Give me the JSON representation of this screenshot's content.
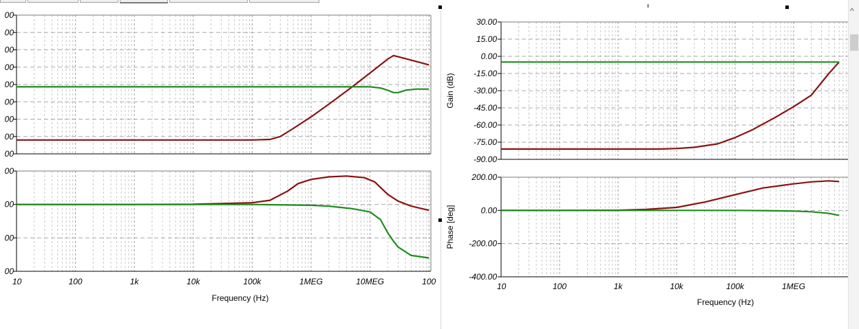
{
  "ui": {
    "tab_count": 5,
    "active_tab": 3
  },
  "chart_data": [
    {
      "id": "left-gain",
      "type": "line",
      "x_scale": "log",
      "xlim": [
        10,
        100000000
      ],
      "ylim": [
        -90,
        30
      ],
      "x_tick_labels": [],
      "y_tick_labels": [
        "00",
        "00",
        "00",
        "00",
        "00",
        "00",
        "00",
        "00",
        "00"
      ],
      "grid": true,
      "xlabel": "",
      "ylabel": "",
      "series": [
        {
          "color": "#8b1010",
          "x": [
            10,
            100,
            1000,
            10000,
            100000,
            200000,
            300000,
            500000,
            1000000,
            2000000,
            5000000,
            10000000,
            20000000,
            25000000,
            30000000,
            50000000,
            100000000
          ],
          "y": [
            -78,
            -78,
            -78,
            -78,
            -78,
            -77.5,
            -75,
            -68,
            -58,
            -47,
            -32,
            -20,
            -8,
            -5,
            -6,
            -9,
            -13
          ]
        },
        {
          "color": "#1e8c1e",
          "x": [
            10,
            100,
            1000,
            10000,
            100000,
            1000000,
            5000000,
            10000000,
            15000000,
            20000000,
            25000000,
            30000000,
            40000000,
            60000000,
            100000000
          ],
          "y": [
            -32,
            -32,
            -32,
            -32,
            -32,
            -32,
            -32,
            -32,
            -33,
            -35,
            -37,
            -37,
            -35,
            -34,
            -34
          ]
        }
      ]
    },
    {
      "id": "left-phase",
      "type": "line",
      "x_scale": "log",
      "xlim": [
        10,
        100000000
      ],
      "ylim": [
        -400,
        200
      ],
      "x_tick_labels": [
        "10",
        "100",
        "1k",
        "10k",
        "100k",
        "1MEG",
        "10MEG",
        "100"
      ],
      "y_tick_labels": [
        "00",
        "00",
        "00",
        "00"
      ],
      "grid": true,
      "xlabel": "Frequency (Hz)",
      "ylabel": "",
      "series": [
        {
          "color": "#8b1010",
          "x": [
            10,
            100,
            1000,
            10000,
            100000,
            200000,
            400000,
            600000,
            1000000,
            2000000,
            4000000,
            8000000,
            12000000,
            20000000,
            30000000,
            50000000,
            100000000
          ],
          "y": [
            0,
            0,
            0,
            1,
            10,
            25,
            80,
            125,
            150,
            165,
            170,
            160,
            135,
            60,
            20,
            -10,
            -35
          ]
        },
        {
          "color": "#1e8c1e",
          "x": [
            10,
            100,
            1000,
            10000,
            100000,
            1000000,
            2000000,
            5000000,
            10000000,
            15000000,
            20000000,
            25000000,
            30000000,
            50000000,
            100000000
          ],
          "y": [
            0,
            0,
            0,
            0,
            0,
            -5,
            -10,
            -25,
            -45,
            -90,
            -170,
            -220,
            -255,
            -305,
            -320
          ]
        }
      ]
    },
    {
      "id": "right-gain",
      "type": "line",
      "x_scale": "log",
      "xlim": [
        10,
        6000000
      ],
      "ylim": [
        -90,
        30
      ],
      "x_tick_labels": [],
      "y_tick_labels": [
        "30.00",
        "15.00",
        "0.00",
        "-15.00",
        "-30.00",
        "-45.00",
        "-60.00",
        "-75.00",
        "-90.00"
      ],
      "grid": true,
      "xlabel": "",
      "ylabel": "Gain (dB)",
      "series": [
        {
          "color": "#8b1010",
          "x": [
            10,
            100,
            1000,
            5000,
            10000,
            20000,
            50000,
            100000,
            200000,
            500000,
            1000000,
            2000000,
            4000000,
            6000000
          ],
          "y": [
            -81,
            -81,
            -81,
            -81,
            -80.5,
            -79.5,
            -76.5,
            -71,
            -64,
            -53,
            -44,
            -34,
            -15,
            -5
          ]
        },
        {
          "color": "#1e8c1e",
          "x": [
            10,
            100,
            1000,
            10000,
            100000,
            1000000,
            6000000
          ],
          "y": [
            -5,
            -5,
            -5,
            -5,
            -5,
            -5,
            -5
          ]
        }
      ]
    },
    {
      "id": "right-phase",
      "type": "line",
      "x_scale": "log",
      "xlim": [
        10,
        6000000
      ],
      "ylim": [
        -400,
        200
      ],
      "x_tick_labels": [
        "10",
        "100",
        "1k",
        "10k",
        "100k",
        "1MEG"
      ],
      "y_tick_labels": [
        "200.00",
        "0.00",
        "-200.00",
        "-400.00"
      ],
      "grid": true,
      "xlabel": "Frequency (Hz)",
      "ylabel": "Phase [deg]",
      "series": [
        {
          "color": "#8b1010",
          "x": [
            10,
            100,
            1000,
            3000,
            10000,
            30000,
            100000,
            300000,
            1000000,
            2000000,
            4000000,
            6000000
          ],
          "y": [
            0,
            0,
            1,
            6,
            18,
            50,
            95,
            135,
            160,
            172,
            178,
            174
          ]
        },
        {
          "color": "#1e8c1e",
          "x": [
            10,
            100,
            1000,
            10000,
            100000,
            300000,
            1000000,
            2000000,
            4000000,
            6000000
          ],
          "y": [
            0,
            0,
            0,
            0,
            0,
            -1,
            -4,
            -8,
            -18,
            -30
          ]
        }
      ]
    }
  ]
}
